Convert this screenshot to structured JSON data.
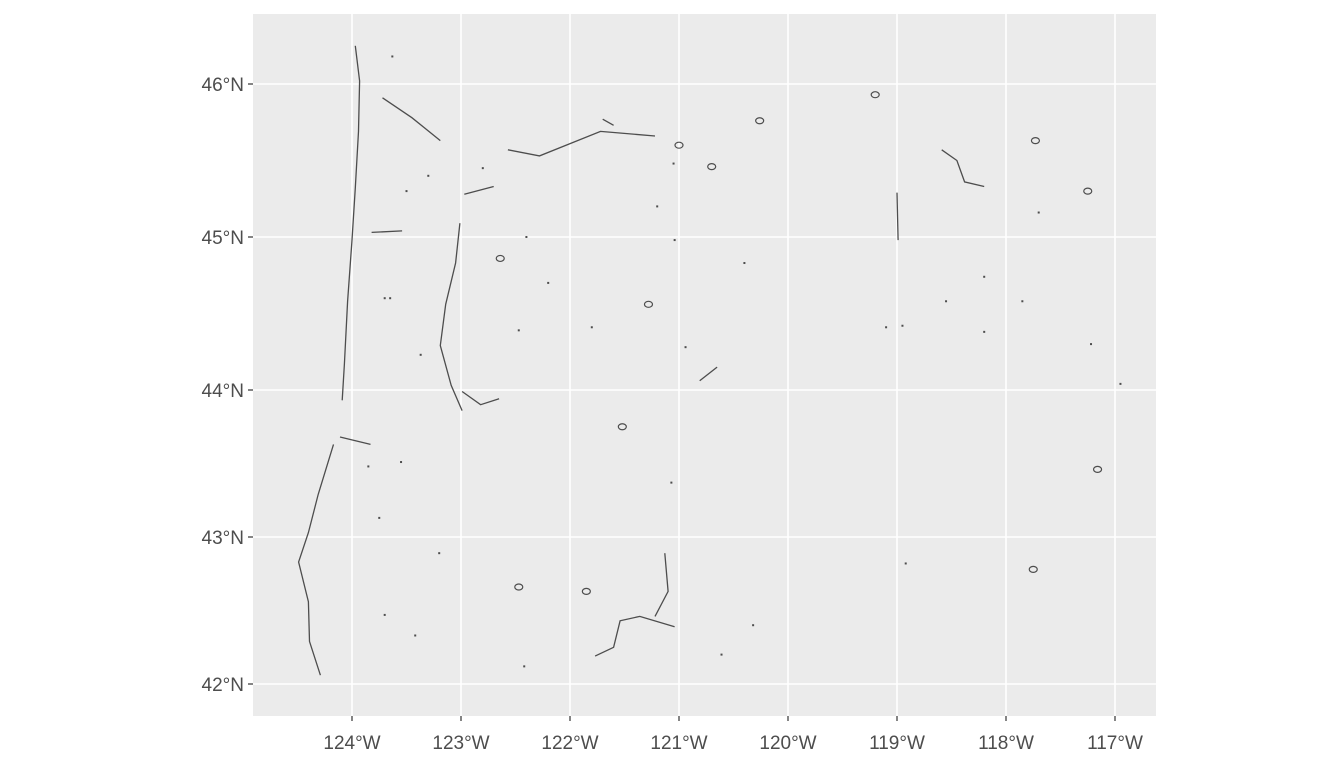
{
  "chart_data": {
    "type": "map",
    "title": "",
    "xlabel": "",
    "ylabel": "",
    "xlim": [
      -124.9,
      -116.6
    ],
    "ylim": [
      41.8,
      46.5
    ],
    "grid": true,
    "background_color": "#EBEBEB",
    "grid_color": "#FFFFFF",
    "feature_color": "#4D4D4D",
    "x_ticks": [
      {
        "value": -124,
        "label": "124°W"
      },
      {
        "value": -123,
        "label": "123°W"
      },
      {
        "value": -122,
        "label": "122°W"
      },
      {
        "value": -121,
        "label": "121°W"
      },
      {
        "value": -120,
        "label": "120°W"
      },
      {
        "value": -119,
        "label": "119°W"
      },
      {
        "value": -118,
        "label": "118°W"
      },
      {
        "value": -117,
        "label": "117°W"
      }
    ],
    "y_ticks": [
      {
        "value": 46,
        "label": "46°N"
      },
      {
        "value": 45,
        "label": "45°N"
      },
      {
        "value": 44,
        "label": "44°N"
      },
      {
        "value": 43,
        "label": "43°N"
      },
      {
        "value": 42,
        "label": "42°N"
      }
    ],
    "lines": [
      [
        [
          -123.97,
          46.25
        ],
        [
          -123.93,
          46.02
        ],
        [
          -123.94,
          45.69
        ],
        [
          -123.97,
          45.32
        ],
        [
          -124.0,
          44.98
        ],
        [
          -124.04,
          44.58
        ],
        [
          -124.07,
          44.17
        ],
        [
          -124.09,
          43.93
        ]
      ],
      [
        [
          -124.17,
          43.63
        ],
        [
          -124.31,
          43.29
        ],
        [
          -124.4,
          43.03
        ],
        [
          -124.49,
          42.83
        ],
        [
          -124.4,
          42.56
        ],
        [
          -124.39,
          42.29
        ],
        [
          -124.29,
          42.06
        ]
      ],
      [
        [
          -122.57,
          45.57
        ],
        [
          -122.28,
          45.53
        ],
        [
          -121.72,
          45.69
        ],
        [
          -121.22,
          45.66
        ]
      ],
      [
        [
          -123.01,
          45.09
        ],
        [
          -123.05,
          44.83
        ],
        [
          -123.14,
          44.56
        ],
        [
          -123.19,
          44.29
        ],
        [
          -123.09,
          44.03
        ],
        [
          -122.99,
          43.86
        ]
      ],
      [
        [
          -121.77,
          42.19
        ],
        [
          -121.6,
          42.25
        ],
        [
          -121.54,
          42.43
        ],
        [
          -121.36,
          42.46
        ],
        [
          -121.04,
          42.39
        ]
      ],
      [
        [
          -121.13,
          42.89
        ],
        [
          -121.1,
          42.63
        ],
        [
          -121.22,
          42.46
        ]
      ],
      [
        [
          -124.11,
          43.68
        ],
        [
          -123.83,
          43.63
        ]
      ],
      [
        [
          -123.82,
          45.03
        ],
        [
          -123.54,
          45.04
        ]
      ],
      [
        [
          -123.72,
          45.91
        ],
        [
          -123.45,
          45.78
        ],
        [
          -123.19,
          45.63
        ]
      ],
      [
        [
          -122.99,
          43.99
        ],
        [
          -122.82,
          43.9
        ],
        [
          -122.65,
          43.94
        ]
      ],
      [
        [
          -118.59,
          45.57
        ],
        [
          -118.45,
          45.5
        ],
        [
          -118.38,
          45.36
        ],
        [
          -118.2,
          45.33
        ]
      ],
      [
        [
          -119.0,
          45.29
        ],
        [
          -118.99,
          44.98
        ]
      ],
      [
        [
          -120.81,
          44.06
        ],
        [
          -120.65,
          44.15
        ]
      ],
      [
        [
          -122.97,
          45.28
        ],
        [
          -122.7,
          45.33
        ]
      ],
      [
        [
          -121.7,
          45.77
        ],
        [
          -121.6,
          45.73
        ]
      ]
    ],
    "lakes": [
      [
        -120.7,
        45.46
      ],
      [
        -122.64,
        44.86
      ],
      [
        -121.28,
        44.56
      ],
      [
        -117.16,
        43.46
      ],
      [
        -117.75,
        42.78
      ],
      [
        -117.73,
        45.63
      ],
      [
        -121.52,
        43.75
      ],
      [
        -121.85,
        42.63
      ],
      [
        -119.2,
        45.93
      ],
      [
        -122.47,
        42.66
      ],
      [
        -120.26,
        45.76
      ],
      [
        -121.0,
        45.6
      ],
      [
        -117.25,
        45.3
      ]
    ],
    "points": [
      [
        -123.65,
        44.6
      ],
      [
        -123.37,
        44.23
      ],
      [
        -122.47,
        44.39
      ],
      [
        -121.8,
        44.41
      ],
      [
        -120.94,
        44.28
      ],
      [
        -119.1,
        44.41
      ],
      [
        -118.95,
        44.42
      ],
      [
        -118.55,
        44.58
      ],
      [
        -118.2,
        44.38
      ],
      [
        -117.85,
        44.58
      ],
      [
        -117.22,
        44.3
      ],
      [
        -116.95,
        44.04
      ],
      [
        -123.75,
        43.13
      ],
      [
        -123.2,
        42.89
      ],
      [
        -123.42,
        42.33
      ],
      [
        -123.7,
        42.47
      ],
      [
        -122.42,
        42.12
      ],
      [
        -121.07,
        43.37
      ],
      [
        -120.61,
        42.2
      ],
      [
        -120.32,
        42.4
      ],
      [
        -118.92,
        42.82
      ],
      [
        -123.85,
        43.48
      ],
      [
        -123.55,
        43.51
      ],
      [
        -120.4,
        44.83
      ],
      [
        -121.04,
        44.98
      ],
      [
        -118.2,
        44.74
      ],
      [
        -117.7,
        45.16
      ],
      [
        -121.2,
        45.2
      ],
      [
        -122.4,
        45.0
      ],
      [
        -122.2,
        44.7
      ],
      [
        -123.7,
        44.6
      ],
      [
        -123.5,
        45.3
      ],
      [
        -122.8,
        45.45
      ],
      [
        -123.3,
        45.4
      ],
      [
        -121.05,
        45.48
      ],
      [
        -123.63,
        46.18
      ]
    ]
  }
}
